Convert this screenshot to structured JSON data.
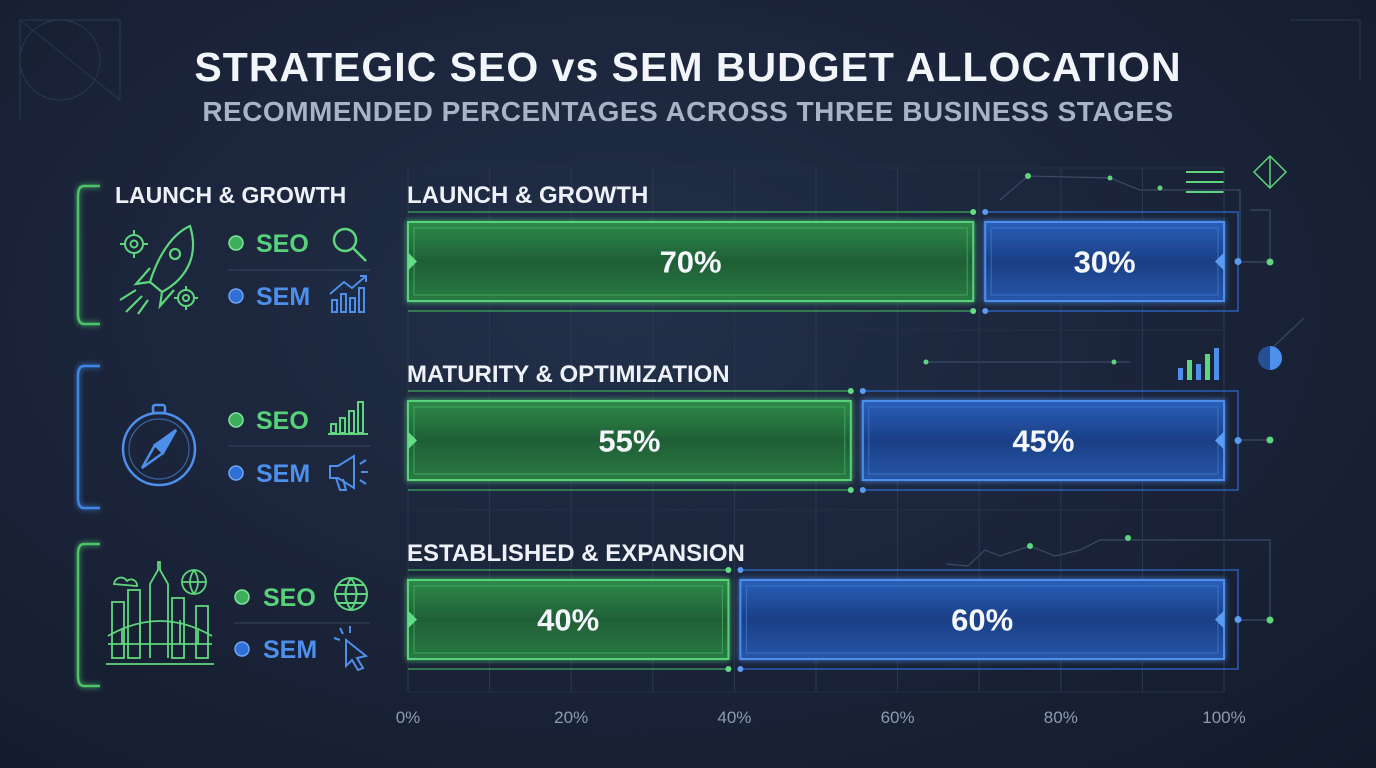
{
  "title": "STRATEGIC SEO vs SEM BUDGET ALLOCATION",
  "subtitle": "RECOMMENDED PERCENTAGES ACROSS THREE BUSINESS STAGES",
  "colors": {
    "seo": "#3fae5c",
    "sem": "#2f6fd6",
    "seo_text": "#58d27a",
    "sem_text": "#4d8fea"
  },
  "legend": {
    "seo_label": "SEO",
    "sem_label": "SEM"
  },
  "sidebar_title": "LAUNCH & GROWTH",
  "stage_icons": [
    "rocket-icon",
    "compass-icon",
    "city-skyline-icon"
  ],
  "chart_data": {
    "type": "bar",
    "orientation": "horizontal",
    "stacked": true,
    "categories": [
      "LAUNCH & GROWTH",
      "MATURITY & OPTIMIZATION",
      "ESTABLISHED & EXPANSION"
    ],
    "series": [
      {
        "name": "SEO",
        "values": [
          70,
          55,
          40
        ]
      },
      {
        "name": "SEM",
        "values": [
          30,
          45,
          60
        ]
      }
    ],
    "value_labels": {
      "SEO": [
        "70%",
        "55%",
        "40%"
      ],
      "SEM": [
        "30%",
        "45%",
        "60%"
      ]
    },
    "x_ticks": [
      "0%",
      "20%",
      "40%",
      "60%",
      "80%",
      "100%"
    ],
    "xlim": [
      0,
      100
    ],
    "grid": true
  }
}
